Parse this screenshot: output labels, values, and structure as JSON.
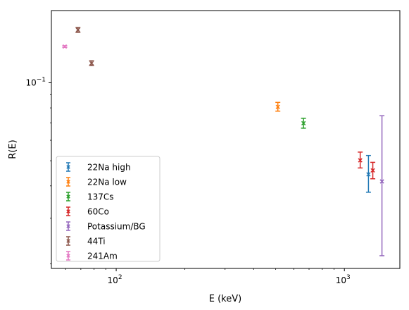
{
  "chart_data": {
    "type": "scatter",
    "title": "",
    "xlabel": "E (keV)",
    "ylabel": "R(E)",
    "xscale": "log",
    "yscale": "log",
    "xlim": [
      52,
      1750
    ],
    "ylim": [
      0.0192,
      0.19
    ],
    "x_ticks": [
      {
        "value": 100,
        "label": "10",
        "exp": "2"
      },
      {
        "value": 1000,
        "label": "10",
        "exp": "3"
      }
    ],
    "y_ticks": [
      {
        "value": 0.1,
        "label": "10",
        "exp": "−1"
      }
    ],
    "legend_position": "lower-left",
    "grid": false,
    "marker": "x",
    "series": [
      {
        "name": "22Na high",
        "color": "#1f77b4",
        "points": [
          {
            "x": 1275,
            "y": 0.0443,
            "yerr_lo": 0.0378,
            "yerr_hi": 0.0524
          }
        ]
      },
      {
        "name": "22Na low",
        "color": "#ff7f0e",
        "points": [
          {
            "x": 511,
            "y": 0.0807,
            "yerr_lo": 0.0777,
            "yerr_hi": 0.084
          }
        ]
      },
      {
        "name": "137Cs",
        "color": "#2ca02c",
        "points": [
          {
            "x": 662,
            "y": 0.0698,
            "yerr_lo": 0.0668,
            "yerr_hi": 0.0729
          }
        ]
      },
      {
        "name": "60Co",
        "color": "#d62728",
        "points": [
          {
            "x": 1173,
            "y": 0.0502,
            "yerr_lo": 0.0469,
            "yerr_hi": 0.054
          },
          {
            "x": 1332,
            "y": 0.0459,
            "yerr_lo": 0.0426,
            "yerr_hi": 0.0493
          }
        ]
      },
      {
        "name": "Potassium/BG",
        "color": "#9467bd",
        "points": [
          {
            "x": 1461,
            "y": 0.0416,
            "yerr_lo": 0.0215,
            "yerr_hi": 0.0746
          }
        ]
      },
      {
        "name": "44Ti",
        "color": "#8c564b",
        "points": [
          {
            "x": 68,
            "y": 0.16,
            "yerr_lo": 0.1565,
            "yerr_hi": 0.1636
          },
          {
            "x": 78,
            "y": 0.119,
            "yerr_lo": 0.1165,
            "yerr_hi": 0.1216
          }
        ]
      },
      {
        "name": "241Am",
        "color": "#e377c2",
        "points": [
          {
            "x": 59.5,
            "y": 0.138,
            "yerr_lo": 0.137,
            "yerr_hi": 0.139
          }
        ]
      }
    ]
  }
}
